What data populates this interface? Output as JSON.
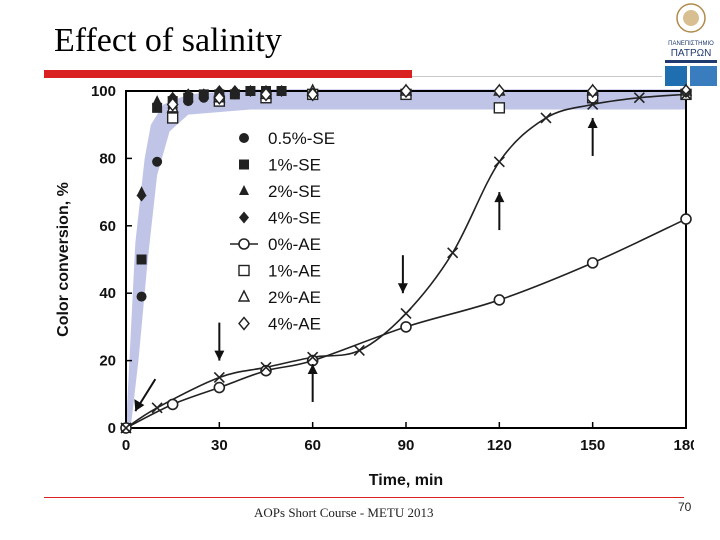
{
  "slide": {
    "title": "Effect of salinity",
    "footer": "AOPs Short Course - METU 2013",
    "page_number": "70",
    "logo_text_1": "ΠΑΝΕΠΙΣΤΗΜΙΟ",
    "logo_text_2": "ΠΑΤΡΩΝ"
  },
  "colors": {
    "title_rule": "#d92121",
    "band": "#b9bfe6",
    "marker": "#222222"
  },
  "chart_data": {
    "type": "scatter",
    "xlabel": "Time, min",
    "ylabel": "Color conversion, %",
    "xlim": [
      0,
      180
    ],
    "ylim": [
      0,
      100
    ],
    "xticks": [
      "0",
      "30",
      "60",
      "90",
      "120",
      "150",
      "180"
    ],
    "yticks": [
      "0",
      "20",
      "40",
      "60",
      "80",
      "100"
    ],
    "legend_position": "center-left",
    "series": [
      {
        "name": "0.5%-SE",
        "marker": "filled-circle",
        "x": [
          0,
          5,
          10,
          15,
          20,
          25,
          30,
          35,
          40,
          45,
          50
        ],
        "y": [
          0,
          39,
          79,
          95,
          97,
          98,
          99,
          99,
          100,
          100,
          100
        ]
      },
      {
        "name": "1%-SE",
        "marker": "filled-square",
        "x": [
          0,
          5,
          10,
          15,
          20,
          25,
          30,
          35,
          40,
          45,
          50
        ],
        "y": [
          0,
          50,
          95,
          97,
          98,
          99,
          99,
          99,
          100,
          100,
          100
        ]
      },
      {
        "name": "2%-SE",
        "marker": "filled-triangle",
        "x": [
          0,
          5,
          10,
          15,
          20,
          25,
          30,
          35,
          40,
          45,
          50
        ],
        "y": [
          0,
          70,
          97,
          98,
          99,
          99,
          100,
          100,
          100,
          100,
          100
        ]
      },
      {
        "name": "4%-SE",
        "marker": "filled-diamond",
        "x": [
          0,
          5,
          10,
          15,
          20,
          25,
          30,
          35,
          40,
          45,
          50
        ],
        "y": [
          0,
          69,
          96,
          98,
          99,
          99,
          100,
          100,
          100,
          100,
          100
        ]
      },
      {
        "name": "0%-AE",
        "marker": "open-circle",
        "line": true,
        "x": [
          0,
          15,
          30,
          45,
          60,
          90,
          120,
          150,
          180
        ],
        "y": [
          0,
          7,
          12,
          17,
          20,
          30,
          38,
          49,
          62
        ]
      },
      {
        "name": "1%-AE",
        "marker": "open-square",
        "x": [
          15,
          30,
          45,
          60,
          90,
          120,
          150,
          180
        ],
        "y": [
          92,
          97,
          98,
          99,
          99,
          95,
          98,
          99
        ]
      },
      {
        "name": "2%-AE",
        "marker": "open-triangle",
        "x": [
          15,
          30,
          45,
          60,
          90,
          120,
          150,
          180
        ],
        "y": [
          95,
          98,
          99,
          100,
          100,
          100,
          100,
          100
        ]
      },
      {
        "name": "4%-AE",
        "marker": "open-diamond",
        "x": [
          15,
          30,
          45,
          60,
          90,
          120,
          150,
          180
        ],
        "y": [
          96,
          98,
          99,
          99,
          100,
          100,
          100,
          100
        ]
      },
      {
        "marker": "cross",
        "line": true,
        "x": [
          0,
          10,
          30,
          45,
          60,
          75,
          90,
          105,
          120,
          135,
          150,
          165,
          180
        ],
        "y": [
          0,
          6,
          15,
          18,
          21,
          23,
          34,
          52,
          79,
          92,
          96,
          98,
          99
        ]
      }
    ],
    "annotations": [
      {
        "type": "arrow-down",
        "x": 30,
        "y": 20
      },
      {
        "type": "arrow-up",
        "x": 60,
        "y": 19
      },
      {
        "type": "arrow-down",
        "x": 89,
        "y": 40
      },
      {
        "type": "arrow-up",
        "x": 120,
        "y": 70
      },
      {
        "type": "arrow-up",
        "x": 150,
        "y": 92
      },
      {
        "type": "arrow-diag",
        "x": 3,
        "y": 5
      }
    ]
  }
}
